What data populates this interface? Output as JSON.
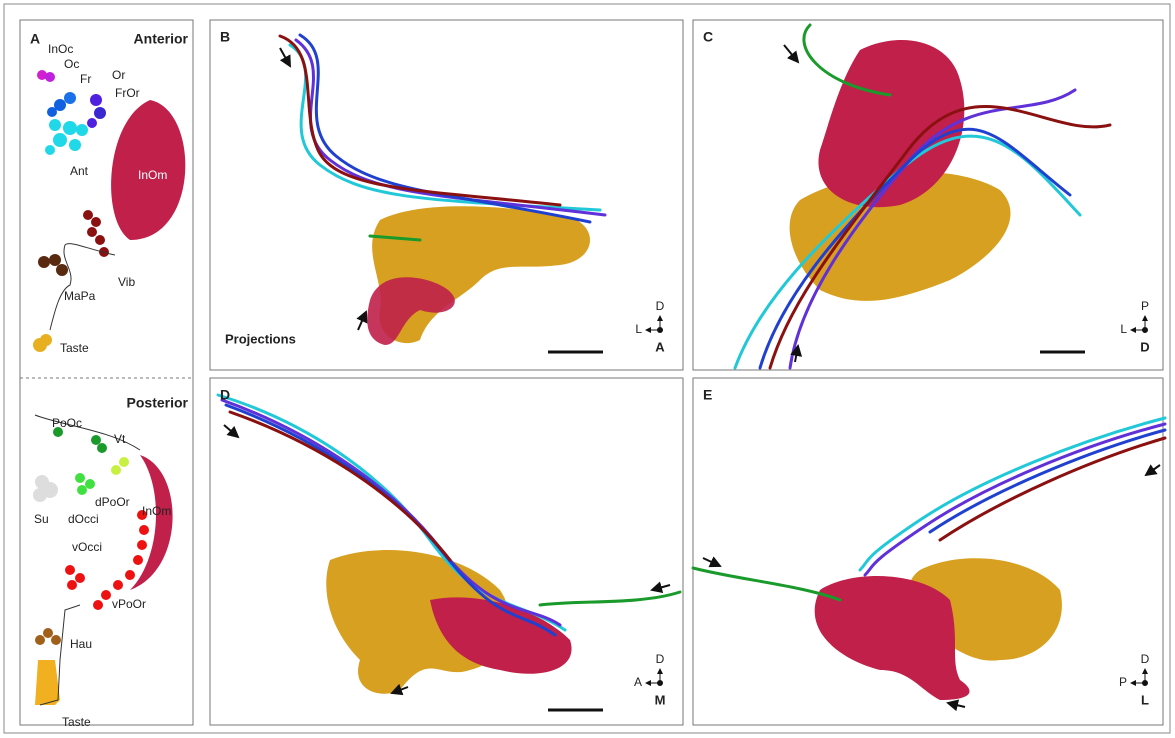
{
  "panel_a": {
    "label": "A",
    "anterior": {
      "title": "Anterior",
      "labels": [
        "InOc",
        "Oc",
        "Fr",
        "Or",
        "FrOr",
        "Ant",
        "InOm",
        "Vib",
        "MaPa",
        "Taste"
      ]
    },
    "posterior": {
      "title": "Posterior",
      "labels": [
        "PoOc",
        "Vt",
        "Su",
        "dOcci",
        "dPoOr",
        "InOm",
        "vOcci",
        "vPoOr",
        "Hau",
        "Taste"
      ]
    }
  },
  "panels": [
    {
      "label": "B",
      "caption": "Projections",
      "compass": {
        "up": "D",
        "left": "L",
        "view": "A"
      }
    },
    {
      "label": "C",
      "compass": {
        "up": "P",
        "left": "L",
        "view": "D"
      }
    },
    {
      "label": "D",
      "compass": {
        "up": "D",
        "left": "A",
        "view": "M"
      }
    },
    {
      "label": "E",
      "compass": {
        "up": "D",
        "left": "P",
        "view": "L"
      }
    }
  ]
}
